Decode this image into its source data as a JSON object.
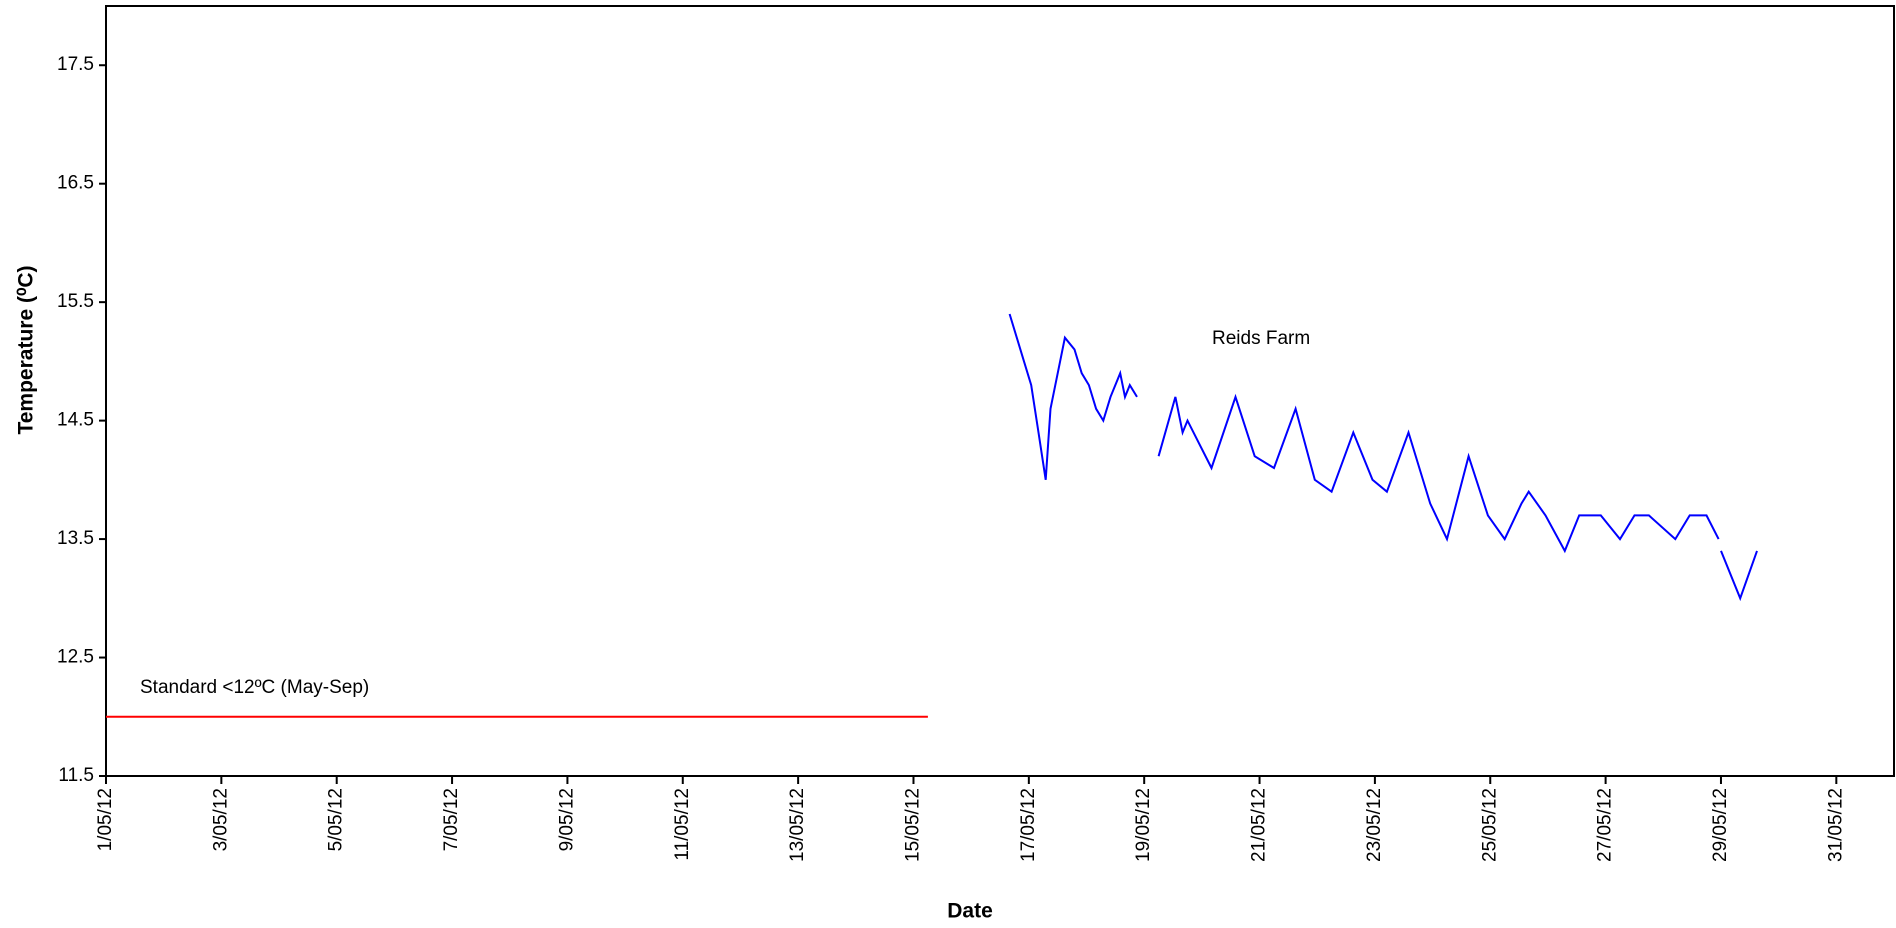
{
  "chart_data": {
    "type": "line",
    "y_label": "Temperature (⁰C)",
    "x_label": "Date",
    "xlim": [
      "2012-05-01 00:00",
      "2012-06-01 00:00"
    ],
    "xticks": [
      {
        "value": "2012-05-01 00:00",
        "label": "1/05/12"
      },
      {
        "value": "2012-05-03 00:00",
        "label": "3/05/12"
      },
      {
        "value": "2012-05-05 00:00",
        "label": "5/05/12"
      },
      {
        "value": "2012-05-07 00:00",
        "label": "7/05/12"
      },
      {
        "value": "2012-05-09 00:00",
        "label": "9/05/12"
      },
      {
        "value": "2012-05-11 00:00",
        "label": "11/05/12"
      },
      {
        "value": "2012-05-13 00:00",
        "label": "13/05/12"
      },
      {
        "value": "2012-05-15 00:00",
        "label": "15/05/12"
      },
      {
        "value": "2012-05-17 00:00",
        "label": "17/05/12"
      },
      {
        "value": "2012-05-19 00:00",
        "label": "19/05/12"
      },
      {
        "value": "2012-05-21 00:00",
        "label": "21/05/12"
      },
      {
        "value": "2012-05-23 00:00",
        "label": "23/05/12"
      },
      {
        "value": "2012-05-25 00:00",
        "label": "25/05/12"
      },
      {
        "value": "2012-05-27 00:00",
        "label": "27/05/12"
      },
      {
        "value": "2012-05-29 00:00",
        "label": "29/05/12"
      },
      {
        "value": "2012-05-31 00:00",
        "label": "31/05/12"
      }
    ],
    "ylim": [
      11.5,
      18
    ],
    "yticks": [
      11.5,
      12.5,
      13.5,
      14.5,
      15.5,
      16.5,
      17.5
    ],
    "series": [
      {
        "name": "Standard <12ºC (May-Sep)",
        "color": "#ff0000",
        "x": [
          "2012-05-01 00:00",
          "2012-05-15 06:00"
        ],
        "values": [
          12,
          12
        ]
      },
      {
        "name": "Reids Farm",
        "color": "#0000ff",
        "x": [
          "2012-05-16 16:00",
          "2012-05-16 19:00",
          "2012-05-16 22:00",
          "2012-05-17 01:00",
          "2012-05-17 04:00",
          "2012-05-17 07:00",
          "2012-05-17 09:00",
          "2012-05-17 11:00",
          "2012-05-17 13:00",
          "2012-05-17 15:00",
          "2012-05-17 19:00",
          "2012-05-17 22:00",
          "2012-05-18 01:00",
          "2012-05-18 04:00",
          "2012-05-18 07:00",
          "2012-05-18 10:00",
          "2012-05-18 14:00",
          "2012-05-18 16:00",
          "2012-05-18 18:00",
          "2012-05-18 21:00",
          "2012-05-19 02:00",
          "2012-05-19 06:00",
          "2012-05-19 13:00",
          "2012-05-19 16:00",
          "2012-05-19 18:00",
          "2012-05-20 04:00",
          "2012-05-20 14:00",
          "2012-05-20 22:00",
          "2012-05-21 06:00",
          "2012-05-21 15:00",
          "2012-05-21 23:00",
          "2012-05-22 06:00",
          "2012-05-22 15:00",
          "2012-05-22 23:00",
          "2012-05-23 05:00",
          "2012-05-23 14:00",
          "2012-05-23 23:00",
          "2012-05-24 06:00",
          "2012-05-24 15:00",
          "2012-05-24 23:00",
          "2012-05-25 06:00",
          "2012-05-25 13:00",
          "2012-05-25 16:00",
          "2012-05-25 23:00",
          "2012-05-26 07:00",
          "2012-05-26 13:00",
          "2012-05-26 22:00",
          "2012-05-27 06:00",
          "2012-05-27 12:00",
          "2012-05-27 18:00",
          "2012-05-28 05:00",
          "2012-05-28 11:00",
          "2012-05-28 18:00",
          "2012-05-28 23:00",
          "2012-05-28 23:30",
          "2012-05-29 00:00",
          "2012-05-29 08:00",
          "2012-05-29 15:00"
        ],
        "values": [
          15.4,
          15.2,
          15.0,
          14.8,
          14.4,
          14.0,
          14.6,
          14.8,
          15.0,
          15.2,
          15.1,
          14.9,
          14.8,
          14.6,
          14.5,
          14.7,
          14.9,
          14.7,
          14.8,
          14.7,
          null,
          14.2,
          14.7,
          14.4,
          14.5,
          14.1,
          14.7,
          14.2,
          14.1,
          14.6,
          14.0,
          13.9,
          14.4,
          14.0,
          13.9,
          14.4,
          13.8,
          13.5,
          14.2,
          13.7,
          13.5,
          13.8,
          13.9,
          13.7,
          13.4,
          13.7,
          13.7,
          13.5,
          13.7,
          13.7,
          13.5,
          13.7,
          13.7,
          13.5,
          null,
          13.4,
          13.0,
          13.4
        ]
      }
    ]
  }
}
